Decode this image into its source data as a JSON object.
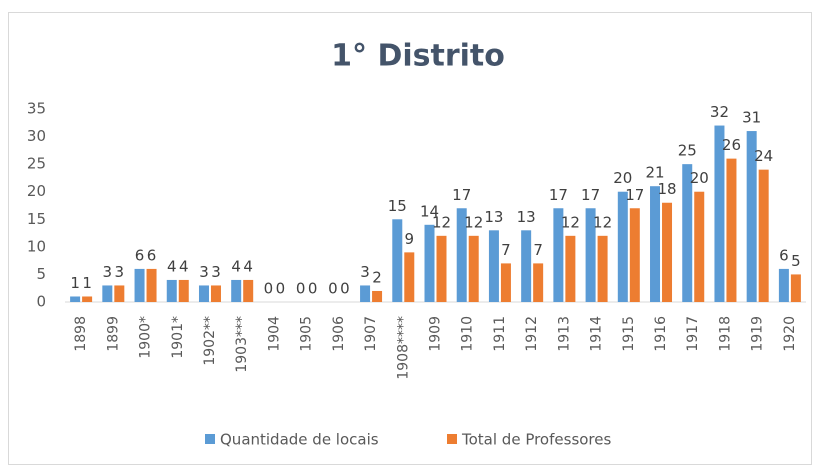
{
  "chart_data": {
    "type": "bar",
    "title": "1° Distrito",
    "categories": [
      "1898",
      "1899",
      "1900*",
      "1901*",
      "1902**",
      "1903***",
      "1904",
      "1905",
      "1906",
      "1907",
      "1908****",
      "1909",
      "1910",
      "1911",
      "1912",
      "1913",
      "1914",
      "1915",
      "1916",
      "1917",
      "1918",
      "1919",
      "1920"
    ],
    "series": [
      {
        "name": "Quantidade de locais",
        "color": "#5b9bd5",
        "values": [
          1,
          3,
          6,
          4,
          3,
          4,
          0,
          0,
          0,
          3,
          15,
          14,
          17,
          13,
          13,
          17,
          17,
          20,
          21,
          25,
          32,
          31,
          6
        ]
      },
      {
        "name": "Total de Professores",
        "color": "#ed7d31",
        "values": [
          1,
          3,
          6,
          4,
          3,
          4,
          0,
          0,
          0,
          2,
          9,
          12,
          12,
          7,
          7,
          12,
          12,
          17,
          18,
          20,
          26,
          24,
          5
        ]
      }
    ],
    "ylim": [
      0,
      35
    ],
    "yticks": [
      0,
      5,
      10,
      15,
      20,
      25,
      30,
      35
    ],
    "grid": false,
    "legend": "bottom"
  }
}
